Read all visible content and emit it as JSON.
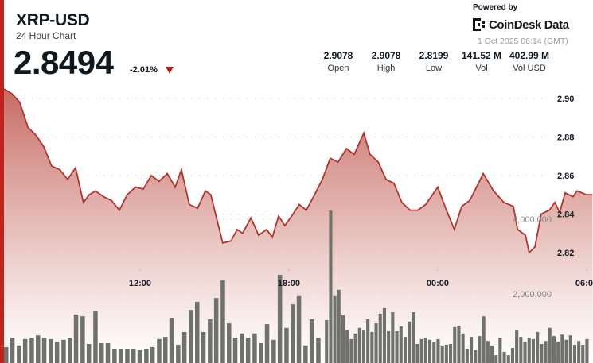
{
  "header": {
    "symbol": "XRP-USD",
    "subtitle": "24 Hour Chart",
    "price": "2.8494",
    "change": "-2.01%",
    "change_direction": "down",
    "powered_by": "Powered by",
    "brand": "CoinDesk Data",
    "timestamp": "1 Oct 2025 06:14 (GMT)"
  },
  "stats": [
    {
      "value": "2.9078",
      "label": "Open"
    },
    {
      "value": "2.9078",
      "label": "High"
    },
    {
      "value": "2.8199",
      "label": "Low"
    },
    {
      "value": "141.52 M",
      "label": "Vol"
    },
    {
      "value": "402.99 M",
      "label": "Vol USD"
    }
  ],
  "colors": {
    "accent": "#c0231c",
    "line": "#b3342c",
    "fill_top": "#c4625b",
    "volume_bar": "#6f716b"
  },
  "chart_data": {
    "type": "line",
    "price_ticks": [
      "2.90",
      "2.88",
      "2.86",
      "2.84",
      "2.82"
    ],
    "volume_ticks": [
      "4,000,000",
      "2,000,000"
    ],
    "x_ticks": [
      "12:00",
      "18:00",
      "00:00",
      "06:00"
    ],
    "price_range": [
      2.815,
      2.91
    ],
    "grid": true,
    "price_series": [
      [
        "06:31",
        2.905
      ],
      [
        "06:50",
        2.9025
      ],
      [
        "07:09",
        2.898
      ],
      [
        "07:29",
        2.885
      ],
      [
        "07:48",
        2.881
      ],
      [
        "08:07",
        2.875
      ],
      [
        "08:26",
        2.865
      ],
      [
        "08:46",
        2.863
      ],
      [
        "09:05",
        2.858
      ],
      [
        "09:24",
        2.864
      ],
      [
        "09:43",
        2.846
      ],
      [
        "09:57",
        2.85
      ],
      [
        "10:12",
        2.852
      ],
      [
        "10:32",
        2.849
      ],
      [
        "10:51",
        2.847
      ],
      [
        "11:10",
        2.842
      ],
      [
        "11:29",
        2.85
      ],
      [
        "11:49",
        2.854
      ],
      [
        "12:08",
        2.853
      ],
      [
        "12:27",
        2.86
      ],
      [
        "12:46",
        2.857
      ],
      [
        "13:06",
        2.861
      ],
      [
        "13:25",
        2.854
      ],
      [
        "13:40",
        2.863
      ],
      [
        "13:59",
        2.845
      ],
      [
        "14:19",
        2.843
      ],
      [
        "14:38",
        2.852
      ],
      [
        "14:51",
        2.85
      ],
      [
        "15:20",
        2.825
      ],
      [
        "15:40",
        2.826
      ],
      [
        "15:55",
        2.832
      ],
      [
        "16:08",
        2.83
      ],
      [
        "16:28",
        2.838
      ],
      [
        "16:47",
        2.829
      ],
      [
        "17:06",
        2.832
      ],
      [
        "17:20",
        2.828
      ],
      [
        "17:35",
        2.839
      ],
      [
        "17:50",
        2.834
      ],
      [
        "18:10",
        2.84
      ],
      [
        "18:25",
        2.845
      ],
      [
        "18:42",
        2.842
      ],
      [
        "19:02",
        2.85
      ],
      [
        "19:21",
        2.858
      ],
      [
        "19:40",
        2.869
      ],
      [
        "19:59",
        2.867
      ],
      [
        "20:19",
        2.874
      ],
      [
        "20:38",
        2.871
      ],
      [
        "21:01",
        2.882
      ],
      [
        "21:16",
        2.871
      ],
      [
        "21:36",
        2.867
      ],
      [
        "21:55",
        2.858
      ],
      [
        "22:14",
        2.856
      ],
      [
        "22:33",
        2.846
      ],
      [
        "22:53",
        2.842
      ],
      [
        "23:12",
        2.842
      ],
      [
        "23:31",
        2.845
      ],
      [
        "00:00",
        2.854
      ],
      [
        "00:19",
        2.843
      ],
      [
        "00:40",
        2.832
      ],
      [
        "00:58",
        2.844
      ],
      [
        "01:17",
        2.847
      ],
      [
        "01:36",
        2.855
      ],
      [
        "01:50",
        2.861
      ],
      [
        "02:15",
        2.852
      ],
      [
        "02:40",
        2.846
      ],
      [
        "03:03",
        2.844
      ],
      [
        "03:13",
        2.832
      ],
      [
        "03:32",
        2.829
      ],
      [
        "03:41",
        2.82
      ],
      [
        "03:55",
        2.823
      ],
      [
        "04:10",
        2.84
      ],
      [
        "04:30",
        2.842
      ],
      [
        "04:43",
        2.846
      ],
      [
        "04:55",
        2.841
      ],
      [
        "05:08",
        2.851
      ],
      [
        "05:27",
        2.849
      ],
      [
        "05:37",
        2.852
      ],
      [
        "06:00",
        2.85
      ],
      [
        "06:14",
        2.85
      ]
    ],
    "volume_series": [
      [
        "06:31",
        575000
      ],
      [
        "06:46",
        830000
      ],
      [
        "07:02",
        620000
      ],
      [
        "07:17",
        790000
      ],
      [
        "07:33",
        830000
      ],
      [
        "07:48",
        890000
      ],
      [
        "08:03",
        830000
      ],
      [
        "08:19",
        790000
      ],
      [
        "08:34",
        720000
      ],
      [
        "08:50",
        770000
      ],
      [
        "09:05",
        830000
      ],
      [
        "09:20",
        1450000
      ],
      [
        "09:36",
        1400000
      ],
      [
        "09:51",
        660000
      ],
      [
        "10:07",
        1530000
      ],
      [
        "10:22",
        680000
      ],
      [
        "10:37",
        680000
      ],
      [
        "10:53",
        510000
      ],
      [
        "11:08",
        510000
      ],
      [
        "11:24",
        510000
      ],
      [
        "11:39",
        510000
      ],
      [
        "11:54",
        490000
      ],
      [
        "12:10",
        510000
      ],
      [
        "12:25",
        575000
      ],
      [
        "12:41",
        790000
      ],
      [
        "12:56",
        850000
      ],
      [
        "13:11",
        1360000
      ],
      [
        "13:27",
        640000
      ],
      [
        "13:42",
        980000
      ],
      [
        "13:58",
        1570000
      ],
      [
        "14:13",
        1790000
      ],
      [
        "14:28",
        980000
      ],
      [
        "14:44",
        1320000
      ],
      [
        "14:59",
        1890000
      ],
      [
        "15:15",
        2360000
      ],
      [
        "15:30",
        1210000
      ],
      [
        "15:45",
        830000
      ],
      [
        "16:01",
        940000
      ],
      [
        "16:16",
        830000
      ],
      [
        "16:32",
        940000
      ],
      [
        "16:47",
        680000
      ],
      [
        "17:02",
        1190000
      ],
      [
        "17:18",
        770000
      ],
      [
        "17:33",
        2510000
      ],
      [
        "17:49",
        1090000
      ],
      [
        "18:04",
        1720000
      ],
      [
        "18:19",
        1940000
      ],
      [
        "18:35",
        620000
      ],
      [
        "18:50",
        1320000
      ],
      [
        "19:06",
        830000
      ],
      [
        "19:27",
        1300000
      ],
      [
        "19:37",
        4230000
      ],
      [
        "19:47",
        1940000
      ],
      [
        "19:57",
        2110000
      ],
      [
        "20:07",
        1430000
      ],
      [
        "20:17",
        1040000
      ],
      [
        "20:27",
        790000
      ],
      [
        "20:37",
        940000
      ],
      [
        "20:47",
        1090000
      ],
      [
        "20:57",
        1020000
      ],
      [
        "21:07",
        1320000
      ],
      [
        "21:17",
        980000
      ],
      [
        "21:27",
        1210000
      ],
      [
        "21:37",
        1470000
      ],
      [
        "21:47",
        1620000
      ],
      [
        "21:57",
        1000000
      ],
      [
        "22:07",
        1510000
      ],
      [
        "22:17",
        1000000
      ],
      [
        "22:27",
        1130000
      ],
      [
        "22:37",
        850000
      ],
      [
        "22:47",
        1260000
      ],
      [
        "22:57",
        1510000
      ],
      [
        "23:07",
        660000
      ],
      [
        "23:17",
        790000
      ],
      [
        "23:27",
        830000
      ],
      [
        "23:37",
        770000
      ],
      [
        "23:47",
        700000
      ],
      [
        "23:57",
        790000
      ],
      [
        "00:07",
        620000
      ],
      [
        "00:17",
        640000
      ],
      [
        "00:27",
        660000
      ],
      [
        "00:37",
        1110000
      ],
      [
        "00:47",
        1150000
      ],
      [
        "00:57",
        940000
      ],
      [
        "01:07",
        530000
      ],
      [
        "01:17",
        850000
      ],
      [
        "01:27",
        490000
      ],
      [
        "01:37",
        870000
      ],
      [
        "01:47",
        1400000
      ],
      [
        "01:57",
        740000
      ],
      [
        "02:07",
        620000
      ],
      [
        "02:17",
        360000
      ],
      [
        "02:27",
        830000
      ],
      [
        "02:37",
        450000
      ],
      [
        "02:47",
        360000
      ],
      [
        "02:57",
        550000
      ],
      [
        "03:07",
        1020000
      ],
      [
        "03:17",
        850000
      ],
      [
        "03:27",
        720000
      ],
      [
        "03:37",
        830000
      ],
      [
        "03:47",
        790000
      ],
      [
        "03:57",
        980000
      ],
      [
        "04:07",
        660000
      ],
      [
        "04:17",
        740000
      ],
      [
        "04:27",
        1090000
      ],
      [
        "04:37",
        870000
      ],
      [
        "04:47",
        720000
      ],
      [
        "04:57",
        910000
      ],
      [
        "05:07",
        770000
      ],
      [
        "05:17",
        890000
      ],
      [
        "05:27",
        640000
      ],
      [
        "05:37",
        740000
      ],
      [
        "05:47",
        640000
      ],
      [
        "05:57",
        790000
      ]
    ]
  }
}
